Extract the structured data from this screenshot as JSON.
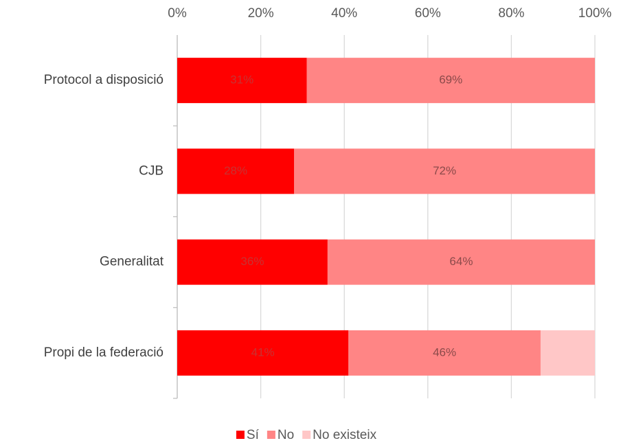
{
  "chart_data": {
    "type": "stacked_barh",
    "categories": [
      "Protocol a disposició",
      "CJB",
      "Generalitat",
      "Propi de la federació"
    ],
    "series": [
      {
        "name": "Sí",
        "color": "#ff0000",
        "values": [
          31,
          28,
          36,
          41
        ],
        "value_labels": [
          "31%",
          "28%",
          "36%",
          "41%"
        ]
      },
      {
        "name": "No",
        "color": "#ff8585",
        "values": [
          69,
          72,
          64,
          46
        ],
        "value_labels": [
          "69%",
          "72%",
          "64%",
          "46%"
        ]
      },
      {
        "name": "No existeix",
        "color": "#ffc7c7",
        "values": [
          0,
          0,
          0,
          13
        ]
      }
    ],
    "xlim": [
      0,
      100
    ],
    "xticks": [
      {
        "value": 0,
        "label": "0%"
      },
      {
        "value": 20,
        "label": "20%"
      },
      {
        "value": 40,
        "label": "40%"
      },
      {
        "value": 60,
        "label": "60%"
      },
      {
        "value": 80,
        "label": "80%"
      },
      {
        "value": 100,
        "label": "100%"
      }
    ],
    "grid": true,
    "legend": "bottom"
  }
}
